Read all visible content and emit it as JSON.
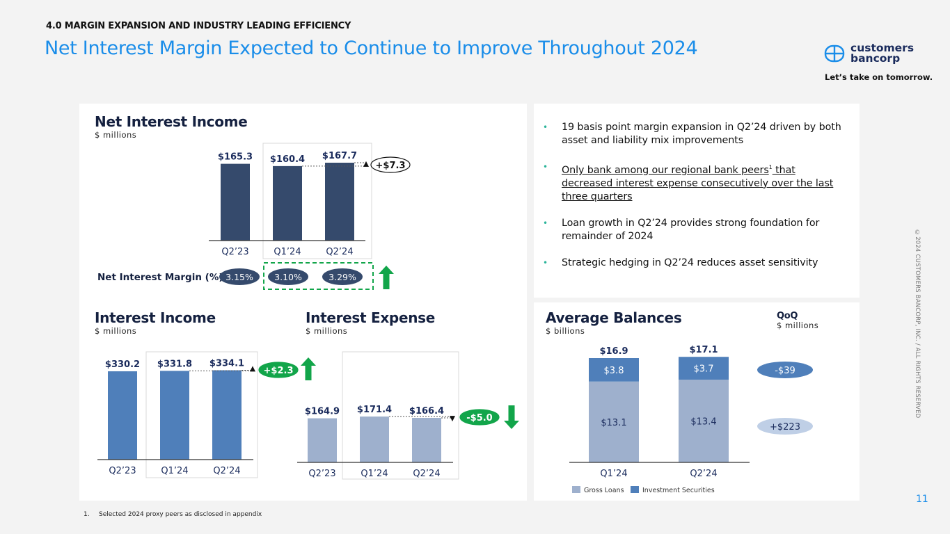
{
  "header": {
    "section": "4.0 MARGIN EXPANSION AND INDUSTRY LEADING EFFICIENCY",
    "title": "Net Interest Margin Expected to Continue to Improve Throughout 2024"
  },
  "brand": {
    "logo_icon": "customers-bancorp-logo-icon",
    "name_line1": "customers",
    "name_line2": "bancorp",
    "tagline": "Let’s take on tomorrow."
  },
  "colors": {
    "title_blue": "#1a8de9",
    "navy_bar": "#354a6c",
    "income_bar": "#4f7fba",
    "expense_bar": "#9eb0cd",
    "green": "#12a54a",
    "loans": "#9eb0cd",
    "securities": "#4f7fba",
    "bullet_teal": "#2bb49a"
  },
  "bullets": [
    {
      "text": "19 basis point margin expansion in Q2’24 driven by both asset and liability mix improvements",
      "sup": "",
      "rest": "",
      "underline": false
    },
    {
      "text": "Only bank among our regional bank peers",
      "sup": "1",
      "rest": " that decreased interest expense consecutively over the last three quarters",
      "underline": true
    },
    {
      "text": "Loan growth in Q2’24 provides strong foundation for remainder of 2024",
      "sup": "",
      "rest": "",
      "underline": false
    },
    {
      "text": "Strategic hedging in Q2’24 reduces asset sensitivity",
      "sup": "",
      "rest": "",
      "underline": false
    }
  ],
  "footnote": {
    "num": "1.",
    "text": "Selected 2024 proxy peers as disclosed in appendix"
  },
  "copyright": "©2024 CUSTOMERS BANCORP, INC. / ALL RIGHTS RESERVED",
  "page_number": "11",
  "chart_data": [
    {
      "type": "bar",
      "id": "nii",
      "title": "Net Interest Income",
      "subtitle": "$ millions",
      "categories": [
        "Q2’23",
        "Q1’24",
        "Q2’24"
      ],
      "values": [
        165.3,
        160.4,
        167.7
      ],
      "labels": [
        "$165.3",
        "$160.4",
        "$167.7"
      ],
      "change_label": "+$7.3",
      "change_direction": "up",
      "margin_label": "Net Interest Margin (%)",
      "margins": [
        "3.15%",
        "3.10%",
        "3.29%"
      ],
      "margin_direction": "up",
      "ylim": [
        0,
        170
      ]
    },
    {
      "type": "bar",
      "id": "interest-income",
      "title": "Interest Income",
      "subtitle": "$ millions",
      "categories": [
        "Q2’23",
        "Q1’24",
        "Q2’24"
      ],
      "values": [
        330.2,
        331.8,
        334.1
      ],
      "labels": [
        "$330.2",
        "$331.8",
        "$334.1"
      ],
      "change_label": "+$2.3",
      "change_direction": "up",
      "ylim": [
        0,
        340
      ]
    },
    {
      "type": "bar",
      "id": "interest-expense",
      "title": "Interest Expense",
      "subtitle": "$ millions",
      "categories": [
        "Q2’23",
        "Q1’24",
        "Q2’24"
      ],
      "values": [
        164.9,
        171.4,
        166.4
      ],
      "labels": [
        "$164.9",
        "$171.4",
        "$166.4"
      ],
      "change_label": "-$5.0",
      "change_direction": "down",
      "ylim": [
        0,
        340
      ]
    },
    {
      "type": "bar",
      "stacked": true,
      "id": "average-balances",
      "title": "Average Balances",
      "subtitle": "$ billions",
      "categories": [
        "Q1’24",
        "Q2’24"
      ],
      "totals": [
        "$16.9",
        "$17.1"
      ],
      "total_values": [
        16.9,
        17.1
      ],
      "series": [
        {
          "name": "Gross Loans",
          "values": [
            13.1,
            13.4
          ],
          "labels": [
            "$13.1",
            "$13.4"
          ]
        },
        {
          "name": "Investment Securities",
          "values": [
            3.8,
            3.7
          ],
          "labels": [
            "$3.8",
            "$3.7"
          ]
        }
      ],
      "qoq_title": "QoQ",
      "qoq_subtitle": "$ millions",
      "qoq": [
        {
          "series": "Investment Securities",
          "label": "-$39"
        },
        {
          "series": "Gross Loans",
          "label": "+$223"
        }
      ],
      "legend_position": "bottom-left",
      "ylim": [
        0,
        17.5
      ]
    }
  ]
}
